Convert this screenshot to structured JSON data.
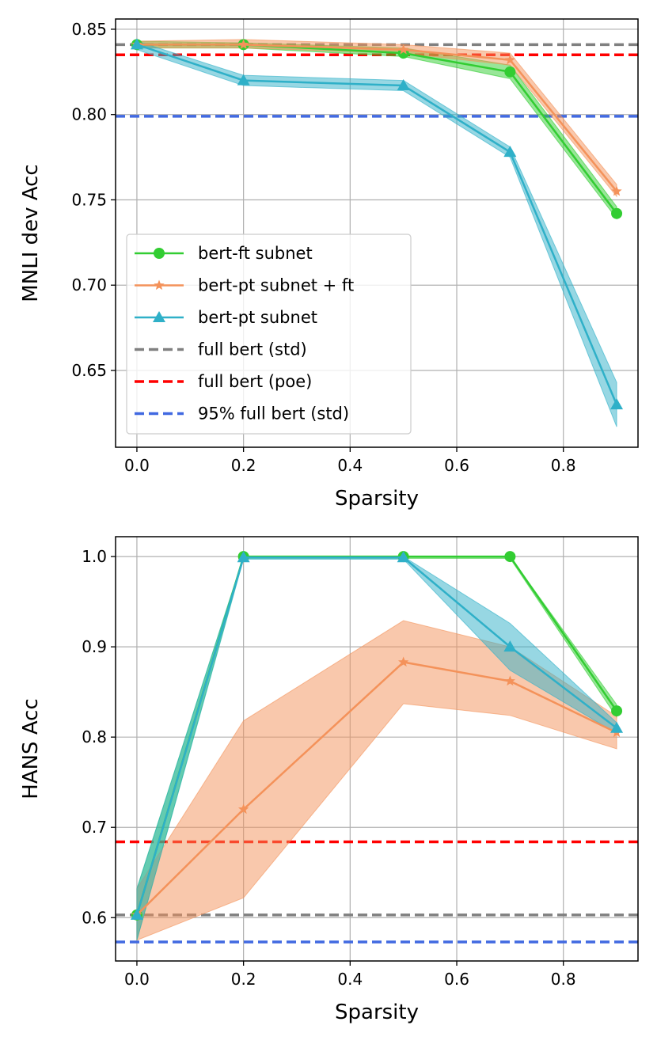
{
  "chart_data": [
    {
      "type": "line",
      "xlabel": "Sparsity",
      "ylabel": "MNLI dev Acc",
      "xlim": [
        -0.04,
        0.94
      ],
      "ylim": [
        0.605,
        0.856
      ],
      "grid": true,
      "legend_position": "center-left",
      "xticks": [
        {
          "value": 0.0,
          "label": "0.0"
        },
        {
          "value": 0.2,
          "label": "0.2"
        },
        {
          "value": 0.4,
          "label": "0.4"
        },
        {
          "value": 0.6,
          "label": "0.6"
        },
        {
          "value": 0.8,
          "label": "0.8"
        }
      ],
      "yticks": [
        {
          "value": 0.65,
          "label": "0.65"
        },
        {
          "value": 0.7,
          "label": "0.70"
        },
        {
          "value": 0.75,
          "label": "0.75"
        },
        {
          "value": 0.8,
          "label": "0.80"
        },
        {
          "value": 0.85,
          "label": "0.85"
        }
      ],
      "series": [
        {
          "name": "bert-ft subnet",
          "color": "#32cd32",
          "marker": "circle",
          "x": [
            0.0,
            0.2,
            0.5,
            0.7,
            0.9
          ],
          "values": [
            0.841,
            0.841,
            0.836,
            0.825,
            0.742
          ],
          "lower": [
            0.839,
            0.839,
            0.834,
            0.821,
            0.739
          ],
          "upper": [
            0.843,
            0.842,
            0.839,
            0.829,
            0.746
          ]
        },
        {
          "name": "bert-pt subnet + ft",
          "color": "#f4925a",
          "marker": "star",
          "x": [
            0.0,
            0.2,
            0.5,
            0.7,
            0.9
          ],
          "values": [
            0.841,
            0.841,
            0.838,
            0.832,
            0.755
          ],
          "lower": [
            0.839,
            0.839,
            0.836,
            0.829,
            0.752
          ],
          "upper": [
            0.843,
            0.844,
            0.841,
            0.836,
            0.759
          ]
        },
        {
          "name": "bert-pt subnet",
          "color": "#2fb0c8",
          "marker": "triangle",
          "x": [
            0.0,
            0.2,
            0.5,
            0.7,
            0.9
          ],
          "values": [
            0.841,
            0.82,
            0.817,
            0.778,
            0.63
          ],
          "lower": [
            0.838,
            0.817,
            0.814,
            0.775,
            0.617
          ],
          "upper": [
            0.843,
            0.823,
            0.82,
            0.781,
            0.643
          ]
        }
      ],
      "reference_lines": [
        {
          "name": "full bert (std)",
          "value": 0.841,
          "color": "#808080"
        },
        {
          "name": "full bert (poe)",
          "value": 0.835,
          "color": "#ff0000"
        },
        {
          "name": "95% full bert (std)",
          "value": 0.799,
          "color": "#4169e1"
        }
      ]
    },
    {
      "type": "line",
      "xlabel": "Sparsity",
      "ylabel": "HANS Acc",
      "xlim": [
        -0.04,
        0.94
      ],
      "ylim": [
        0.552,
        1.022
      ],
      "grid": true,
      "xticks": [
        {
          "value": 0.0,
          "label": "0.0"
        },
        {
          "value": 0.2,
          "label": "0.2"
        },
        {
          "value": 0.4,
          "label": "0.4"
        },
        {
          "value": 0.6,
          "label": "0.6"
        },
        {
          "value": 0.8,
          "label": "0.8"
        }
      ],
      "yticks": [
        {
          "value": 0.6,
          "label": "0.6"
        },
        {
          "value": 0.7,
          "label": "0.7"
        },
        {
          "value": 0.8,
          "label": "0.8"
        },
        {
          "value": 0.9,
          "label": "0.9"
        },
        {
          "value": 1.0,
          "label": "1.0"
        }
      ],
      "series": [
        {
          "name": "bert-ft subnet",
          "color": "#32cd32",
          "marker": "circle",
          "x": [
            0.0,
            0.2,
            0.5,
            0.7,
            0.9
          ],
          "values": [
            0.603,
            1.0,
            1.0,
            1.0,
            0.829
          ],
          "lower": [
            0.575,
            0.998,
            0.998,
            0.998,
            0.822
          ],
          "upper": [
            0.632,
            1.0,
            1.0,
            1.0,
            0.836
          ]
        },
        {
          "name": "bert-pt subnet + ft",
          "color": "#f4925a",
          "marker": "star",
          "x": [
            0.0,
            0.2,
            0.5,
            0.7,
            0.9
          ],
          "values": [
            0.603,
            0.72,
            0.883,
            0.862,
            0.805
          ],
          "lower": [
            0.575,
            0.622,
            0.837,
            0.824,
            0.787
          ],
          "upper": [
            0.632,
            0.818,
            0.929,
            0.9,
            0.823
          ]
        },
        {
          "name": "bert-pt subnet",
          "color": "#2fb0c8",
          "marker": "triangle",
          "x": [
            0.0,
            0.2,
            0.5,
            0.7,
            0.9
          ],
          "values": [
            0.603,
            0.999,
            0.999,
            0.9,
            0.81
          ],
          "lower": [
            0.575,
            0.997,
            0.997,
            0.874,
            0.804
          ],
          "upper": [
            0.632,
            1.0,
            1.0,
            0.926,
            0.816
          ]
        }
      ],
      "reference_lines": [
        {
          "name": "full bert (std)",
          "value": 0.603,
          "color": "#808080"
        },
        {
          "name": "full bert (poe)",
          "value": 0.684,
          "color": "#ff0000"
        },
        {
          "name": "95% full bert (std)",
          "value": 0.573,
          "color": "#4169e1"
        }
      ]
    }
  ]
}
